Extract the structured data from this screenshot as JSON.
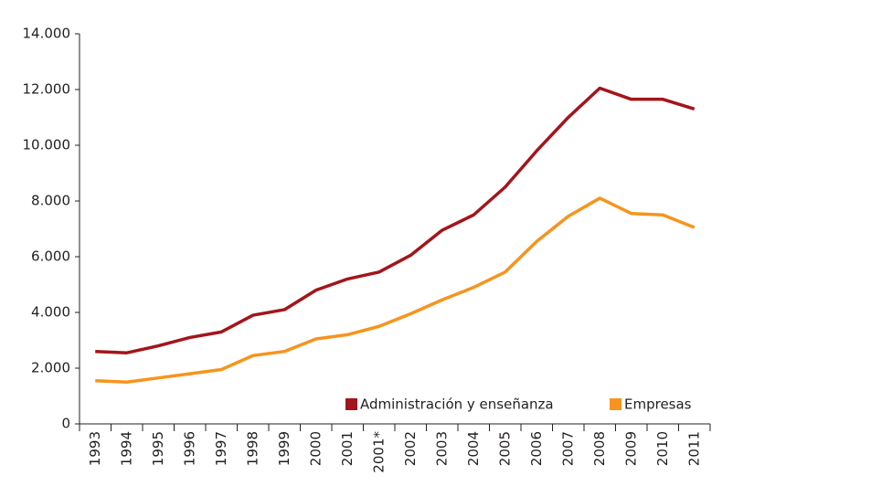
{
  "chart_data": {
    "type": "line",
    "categories": [
      "1993",
      "1994",
      "1995",
      "1996",
      "1997",
      "1998",
      "1999",
      "2000",
      "2001",
      "2001*",
      "2002",
      "2003",
      "2004",
      "2005",
      "2006",
      "2007",
      "2008",
      "2009",
      "2010",
      "2011"
    ],
    "series": [
      {
        "name": "Administración y enseñanza",
        "color": "#a3151a",
        "values": [
          2600,
          2550,
          2800,
          3100,
          3300,
          3900,
          4100,
          4800,
          5200,
          5450,
          6050,
          6950,
          7500,
          8500,
          9800,
          11000,
          12050,
          11650,
          11650,
          11300
        ]
      },
      {
        "name": "Empresas",
        "color": "#f7941d",
        "values": [
          1550,
          1500,
          1650,
          1800,
          1950,
          2450,
          2600,
          3050,
          3200,
          3500,
          3950,
          4450,
          4900,
          5450,
          6550,
          7450,
          8100,
          7550,
          7500,
          7050
        ]
      }
    ],
    "ylim": [
      0,
      14000
    ],
    "yticks": [
      0,
      {
        "value": 2000,
        "label": "2.000"
      },
      {
        "value": 4000,
        "label": "4.000"
      },
      {
        "value": 6000,
        "label": "6.000"
      },
      {
        "value": 8000,
        "label": "8.000"
      },
      {
        "value": 10000,
        "label": "10.000"
      },
      {
        "value": 12000,
        "label": "12.000"
      },
      {
        "value": 14000,
        "label": "14.000"
      }
    ],
    "legend": "lower right"
  }
}
